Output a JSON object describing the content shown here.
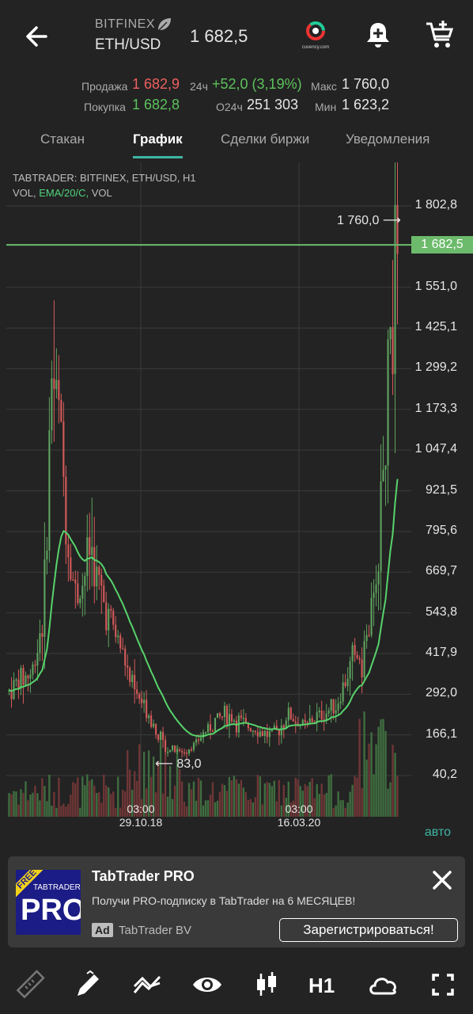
{
  "header": {
    "exchange": "BITFINEX",
    "pair": "ETH/USD",
    "last_price": "1 682,5",
    "brand_small": "cuvency.com"
  },
  "stats": {
    "sell_label": "Продажа",
    "sell_value": "1 682,9",
    "buy_label": "Покупка",
    "buy_value": "1 682,8",
    "change_label": "24ч",
    "change_value": "+52,0 (3,19%)",
    "volume_label": "О24ч",
    "volume_value": "251 303",
    "max_label": "Макс",
    "max_value": "1 760,0",
    "min_label": "Мин",
    "min_value": "1 623,2"
  },
  "tabs": [
    "Стакан",
    "График",
    "Сделки биржи",
    "Уведомления"
  ],
  "active_tab": "График",
  "chart_header": {
    "line1": "TABTRADER: BITFINEX, ETH/USD, H1",
    "vol": "VOL,",
    "ema": "EMA/20/C,",
    "vol2": "VOL"
  },
  "chart_data": {
    "type": "candlestick",
    "y_ticks": [
      "1 802,8",
      "1 551,0",
      "1 425,1",
      "1 299,2",
      "1 173,3",
      "1 047,4",
      "921,5",
      "795,6",
      "669,7",
      "543,8",
      "417,9",
      "292,0",
      "166,1",
      "40,2"
    ],
    "y_range": [
      0,
      1900
    ],
    "current_price": "1 682,5",
    "max_marker": "1 760,0",
    "min_marker": "83,0",
    "x_ticks": [
      {
        "time": "03:00",
        "date": "29.10.18"
      },
      {
        "time": "03:00",
        "date": "16.03.20"
      }
    ],
    "colors": {
      "up": "#5fa35f",
      "down": "#d65a5a",
      "ema": "#57d36b",
      "current": "#6cbb6c"
    }
  },
  "auto_label": "авто",
  "ad": {
    "title": "TabTrader PRO",
    "text": "Получи PRO-подписку в TabTrader на 6 МЕСЯЦЕВ!",
    "badge": "Ad",
    "brand": "TabTrader BV",
    "cta": "Зарегистрироваться!",
    "logo_free": "FREE",
    "logo_small": "TABTRADER",
    "logo_big": "PRO"
  },
  "toolbar": {
    "timeframe": "H1",
    "icons": [
      "ruler-icon",
      "pencil-icon",
      "indicator-icon",
      "eye-icon",
      "candles-icon",
      "timeframe",
      "cloud-icon",
      "fullscreen-icon"
    ]
  }
}
